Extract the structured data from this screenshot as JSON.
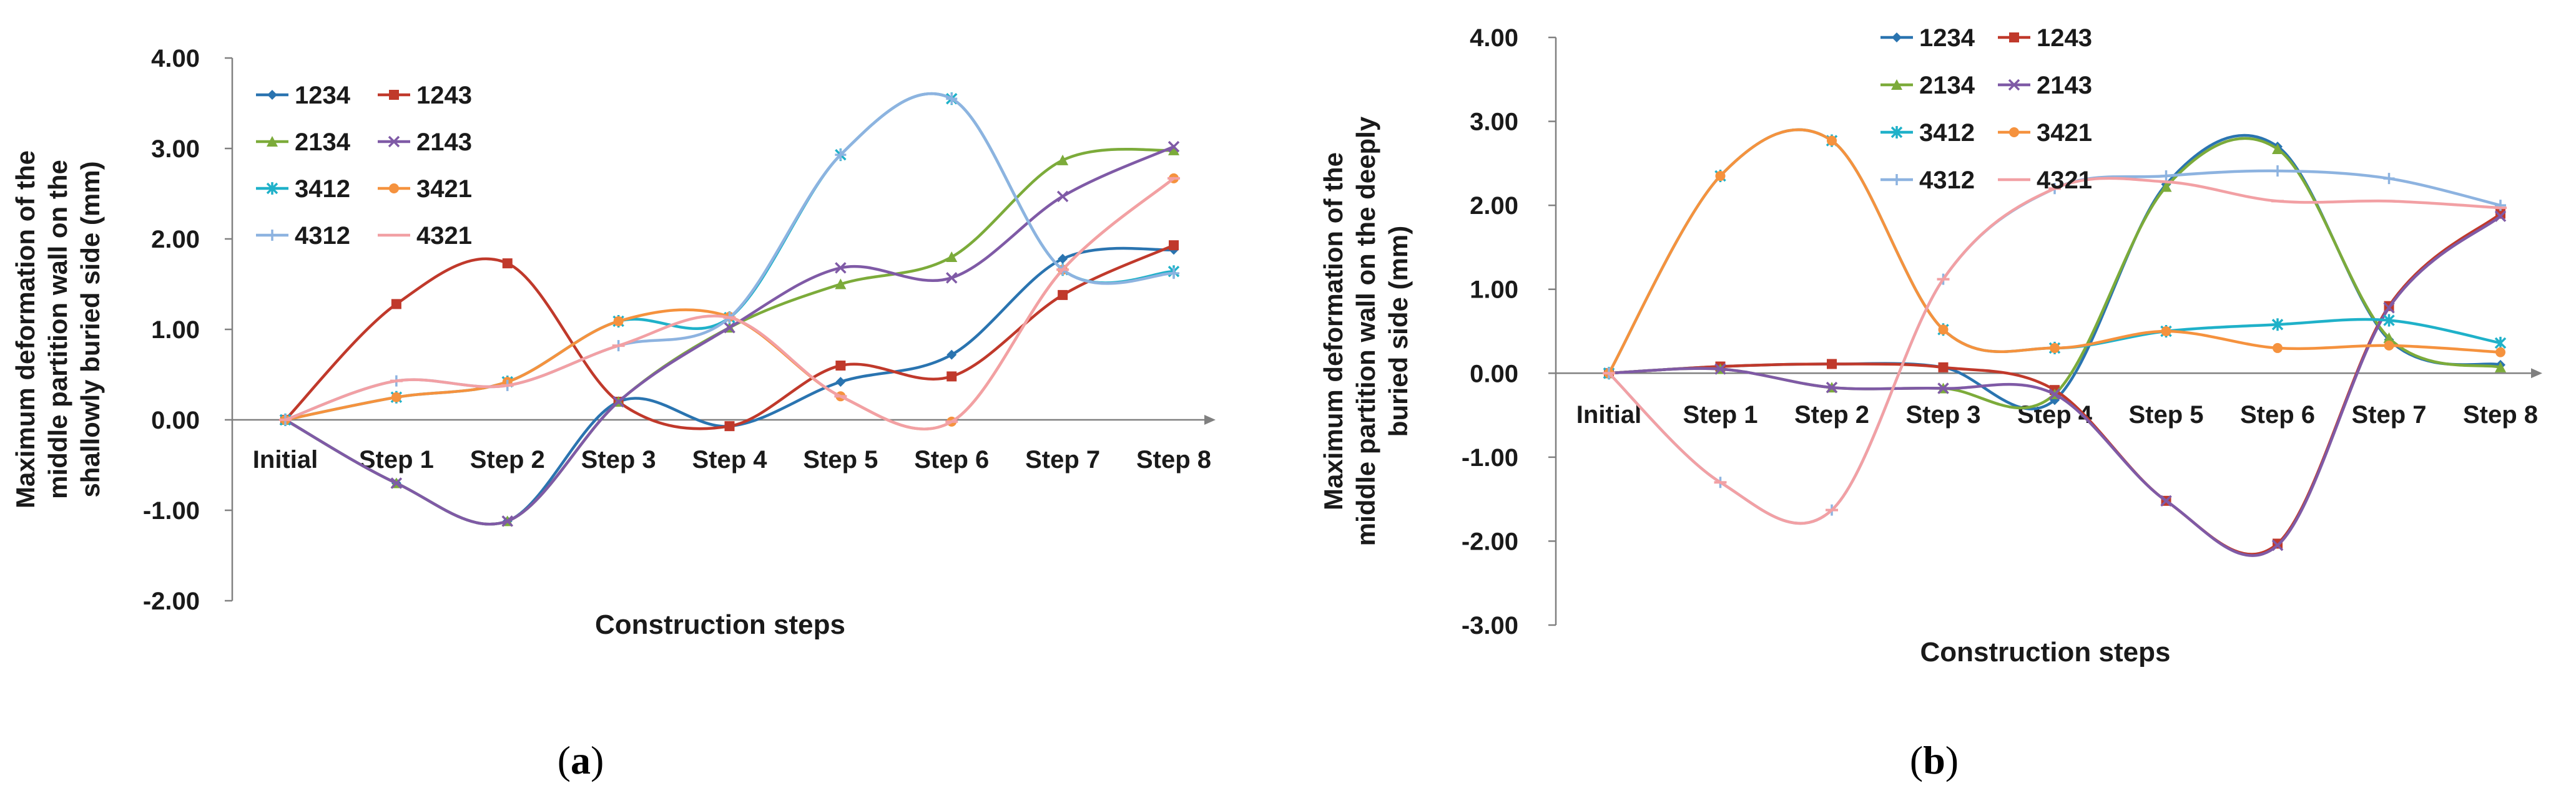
{
  "colors": {
    "1234": "#2a74b0",
    "1243": "#c0392b",
    "2134": "#7cab3a",
    "2143": "#7f5aa6",
    "3412": "#1fb1c9",
    "3421": "#f5923e",
    "4312": "#8db3e0",
    "4321": "#f2a0a4"
  },
  "chart_data": [
    {
      "type": "line",
      "panel_label": "(a)",
      "ylabel_lines": [
        "Maximum deformation of the",
        "middle partition wall on the",
        "shallowly buried side (mm)"
      ],
      "xlabel": "Construction steps",
      "categories": [
        "Initial",
        "Step 1",
        "Step 2",
        "Step 3",
        "Step 4",
        "Step 5",
        "Step 6",
        "Step 7",
        "Step 8"
      ],
      "ylim": [
        -2,
        4
      ],
      "yticks": [
        "-2.00",
        "-1.00",
        "0.00",
        "1.00",
        "2.00",
        "3.00",
        "4.00"
      ],
      "series": [
        {
          "name": "1234",
          "marker": "diamond",
          "values": [
            0,
            -0.7,
            -1.12,
            0.2,
            -0.07,
            0.42,
            0.72,
            1.78,
            1.88
          ]
        },
        {
          "name": "1243",
          "marker": "square",
          "values": [
            0,
            1.28,
            1.73,
            0.2,
            -0.07,
            0.6,
            0.48,
            1.38,
            1.93
          ]
        },
        {
          "name": "2134",
          "marker": "triangle",
          "values": [
            0,
            -0.7,
            -1.12,
            0.2,
            1.02,
            1.5,
            1.8,
            2.87,
            2.98
          ]
        },
        {
          "name": "2143",
          "marker": "x",
          "values": [
            0,
            -0.7,
            -1.12,
            0.2,
            1.02,
            1.68,
            1.57,
            2.47,
            3.02
          ]
        },
        {
          "name": "3412",
          "marker": "star",
          "values": [
            0,
            0.25,
            0.42,
            1.09,
            1.13,
            2.93,
            3.55,
            1.66,
            1.64
          ]
        },
        {
          "name": "3421",
          "marker": "circle",
          "values": [
            0,
            0.25,
            0.42,
            1.09,
            1.14,
            0.26,
            -0.02,
            1.66,
            2.67
          ]
        },
        {
          "name": "4312",
          "marker": "plus",
          "values": [
            0,
            0.43,
            0.38,
            0.82,
            1.13,
            2.93,
            3.55,
            1.66,
            1.62
          ]
        },
        {
          "name": "4321",
          "marker": "dash",
          "values": [
            0,
            0.43,
            0.38,
            0.82,
            1.13,
            0.26,
            -0.02,
            1.66,
            2.67
          ]
        }
      ]
    },
    {
      "type": "line",
      "panel_label": "(b)",
      "ylabel_lines": [
        "Maximum deformation of the",
        "middle partition wall on the deeply",
        "buried side (mm)"
      ],
      "xlabel": "Construction steps",
      "categories": [
        "Initial",
        "Step 1",
        "Step 2",
        "Step 3",
        "Step 4",
        "Step 5",
        "Step 6",
        "Step 7",
        "Step 8"
      ],
      "ylim": [
        -3,
        4
      ],
      "yticks": [
        "-3.00",
        "-2.00",
        "-1.00",
        "0.00",
        "1.00",
        "2.00",
        "3.00",
        "4.00"
      ],
      "series": [
        {
          "name": "1234",
          "marker": "diamond",
          "values": [
            0,
            0.08,
            0.11,
            0.07,
            -0.32,
            2.25,
            2.7,
            0.4,
            0.1
          ]
        },
        {
          "name": "1243",
          "marker": "square",
          "values": [
            0,
            0.08,
            0.11,
            0.07,
            -0.2,
            -1.52,
            -2.03,
            0.8,
            1.9
          ]
        },
        {
          "name": "2134",
          "marker": "triangle",
          "values": [
            0,
            0.05,
            -0.17,
            -0.18,
            -0.25,
            2.22,
            2.67,
            0.42,
            0.07
          ]
        },
        {
          "name": "2143",
          "marker": "x",
          "values": [
            0,
            0.05,
            -0.17,
            -0.18,
            -0.25,
            -1.52,
            -2.05,
            0.78,
            1.87
          ]
        },
        {
          "name": "3412",
          "marker": "star",
          "values": [
            0,
            2.35,
            2.77,
            0.52,
            0.3,
            0.5,
            0.58,
            0.63,
            0.36
          ]
        },
        {
          "name": "3421",
          "marker": "circle",
          "values": [
            0,
            2.35,
            2.77,
            0.52,
            0.3,
            0.5,
            0.3,
            0.33,
            0.25
          ]
        },
        {
          "name": "4312",
          "marker": "plus",
          "values": [
            0,
            -1.3,
            -1.63,
            1.12,
            2.2,
            2.35,
            2.41,
            2.32,
            2.0
          ]
        },
        {
          "name": "4321",
          "marker": "dash",
          "values": [
            0,
            -1.3,
            -1.63,
            1.12,
            2.2,
            2.28,
            2.05,
            2.05,
            1.97
          ]
        }
      ]
    }
  ]
}
